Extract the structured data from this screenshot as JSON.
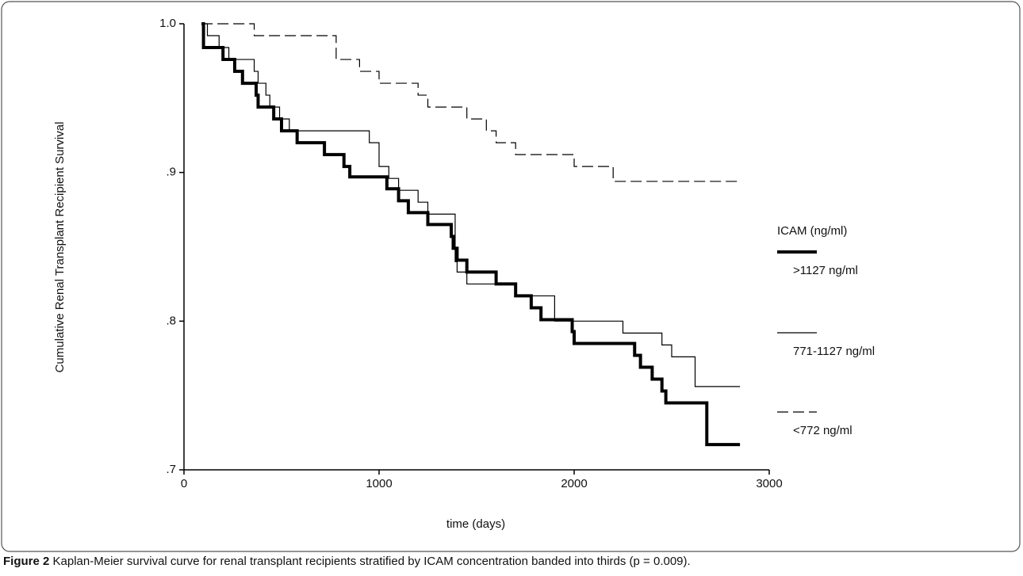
{
  "chart_data": {
    "type": "line",
    "step": true,
    "ylabel": "Cumulative Renal Transplant Recipient Survival",
    "xlabel": "time (days)",
    "xlim": [
      0,
      3000
    ],
    "xticks": [
      0,
      1000,
      2000,
      3000
    ],
    "ylim": [
      0.7,
      1.0
    ],
    "yticks": [
      {
        "value": 0.7,
        "label": ".7"
      },
      {
        "value": 0.8,
        "label": ".8"
      },
      {
        "value": 0.9,
        "label": ".9"
      },
      {
        "value": 1.0,
        "label": "1.0"
      }
    ],
    "legend_title": "ICAM (ng/ml)",
    "legend": "right",
    "series": [
      {
        "name": ">1127 ng/ml",
        "color": "#000000",
        "width": 4,
        "dash": "none",
        "x": [
          90,
          100,
          200,
          260,
          300,
          370,
          380,
          460,
          500,
          580,
          720,
          820,
          850,
          1040,
          1100,
          1150,
          1250,
          1370,
          1380,
          1400,
          1450,
          1600,
          1700,
          1780,
          1830,
          1990,
          2000,
          2310,
          2340,
          2400,
          2450,
          2470,
          2680,
          2850
        ],
        "values": [
          1.0,
          0.984,
          0.976,
          0.968,
          0.96,
          0.952,
          0.944,
          0.936,
          0.928,
          0.92,
          0.912,
          0.904,
          0.897,
          0.889,
          0.881,
          0.873,
          0.865,
          0.857,
          0.849,
          0.841,
          0.833,
          0.825,
          0.817,
          0.809,
          0.801,
          0.793,
          0.785,
          0.777,
          0.769,
          0.761,
          0.753,
          0.745,
          0.717,
          0.717
        ]
      },
      {
        "name": "771-1127 ng/ml",
        "color": "#000000",
        "width": 1.2,
        "dash": "none",
        "x": [
          90,
          120,
          180,
          230,
          360,
          380,
          420,
          440,
          490,
          540,
          950,
          1000,
          1050,
          1100,
          1200,
          1250,
          1390,
          1400,
          1450,
          1700,
          1900,
          2250,
          2450,
          2500,
          2620,
          2850
        ],
        "values": [
          1.0,
          0.992,
          0.984,
          0.976,
          0.968,
          0.96,
          0.952,
          0.944,
          0.936,
          0.928,
          0.92,
          0.904,
          0.896,
          0.888,
          0.88,
          0.872,
          0.84,
          0.833,
          0.825,
          0.817,
          0.8,
          0.792,
          0.784,
          0.776,
          0.756,
          0.756
        ]
      },
      {
        "name": "<772 ng/ml",
        "color": "#000000",
        "width": 1.2,
        "dash": "14 6",
        "x": [
          90,
          360,
          780,
          900,
          1000,
          1200,
          1250,
          1450,
          1550,
          1600,
          1700,
          2000,
          2200,
          2850
        ],
        "values": [
          1.0,
          0.992,
          0.976,
          0.968,
          0.96,
          0.952,
          0.944,
          0.936,
          0.928,
          0.92,
          0.912,
          0.904,
          0.894,
          0.894
        ]
      }
    ]
  },
  "caption": {
    "label": "Figure 2",
    "text": "Kaplan-Meier survival curve for renal transplant recipients stratified by ICAM concentration banded into thirds (p = 0.009)."
  }
}
